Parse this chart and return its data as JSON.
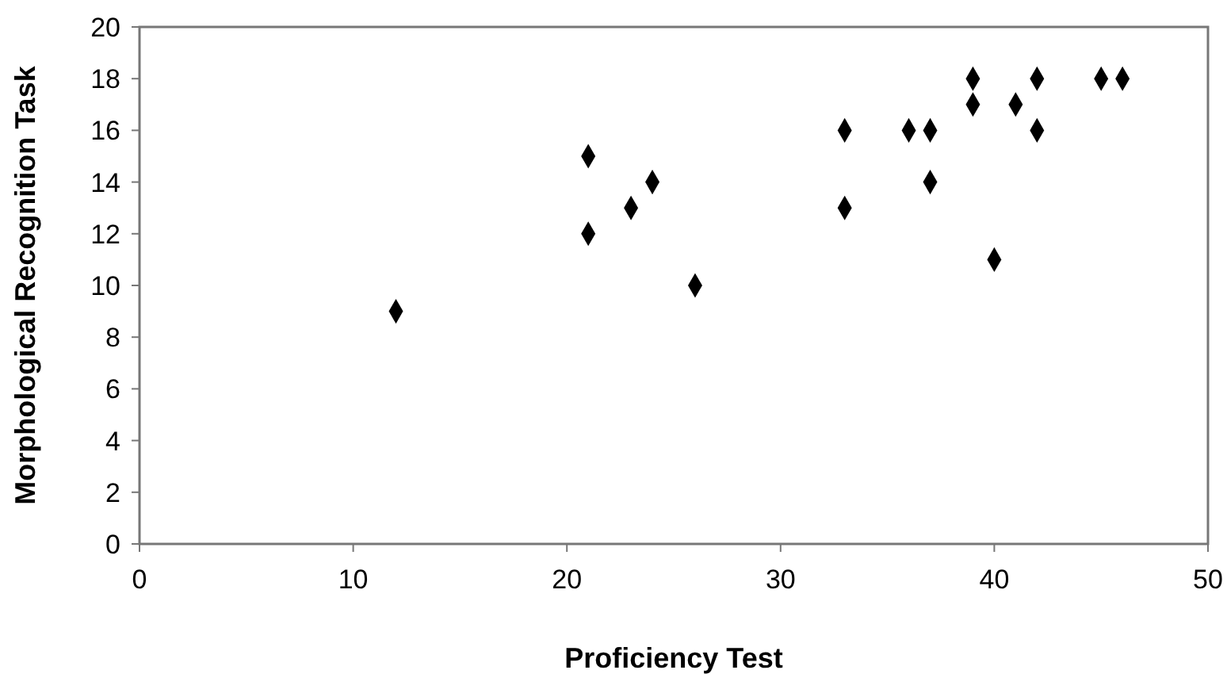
{
  "chart_data": {
    "type": "scatter",
    "xlabel": "Proficiency Test",
    "ylabel": "Morphological Recognition Task",
    "x": [
      12,
      21,
      21,
      23,
      24,
      26,
      33,
      33,
      36,
      37,
      37,
      39,
      39,
      40,
      41,
      42,
      42,
      45,
      46
    ],
    "values": [
      9,
      15,
      12,
      13,
      14,
      10,
      16,
      13,
      16,
      16,
      14,
      18,
      17,
      11,
      17,
      18,
      16,
      18,
      18
    ],
    "color": "#000000",
    "marker": "diamond",
    "xlim": [
      0,
      50
    ],
    "xticks": [
      0,
      10,
      20,
      30,
      40,
      50
    ],
    "ylim": [
      0,
      20
    ],
    "yticks": [
      0,
      2,
      4,
      6,
      8,
      10,
      12,
      14,
      16,
      18,
      20
    ],
    "grid": false
  }
}
